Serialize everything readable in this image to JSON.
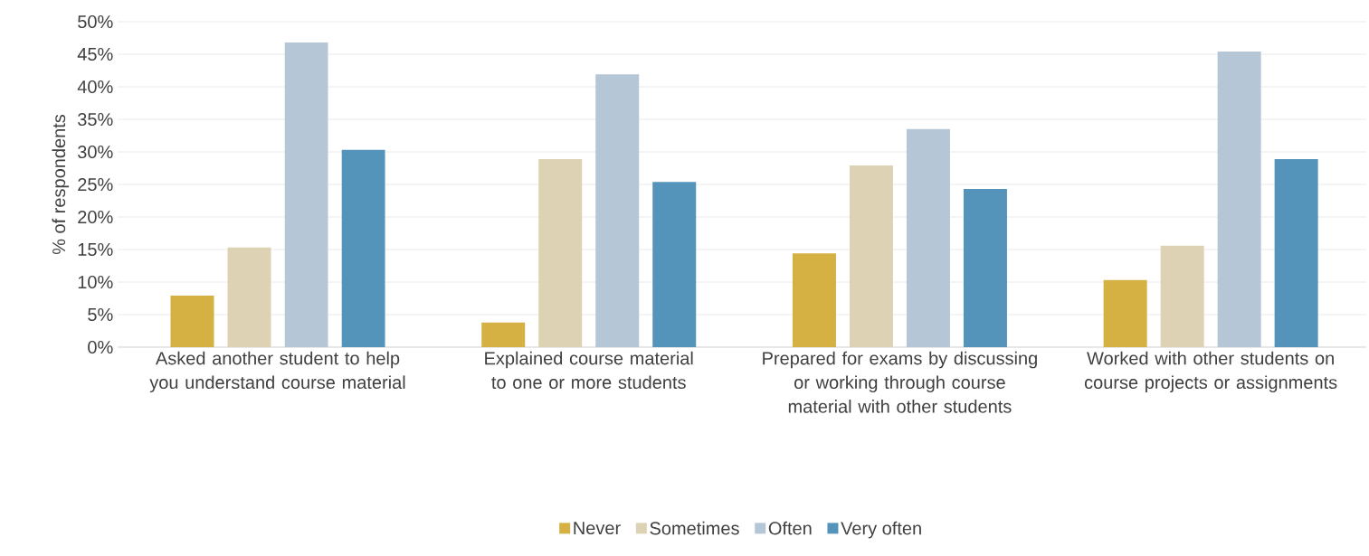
{
  "chart_data": {
    "type": "bar",
    "ylabel": "% of respondents",
    "categories": [
      "Asked another student to help you understand course material",
      "Explained course material to one or more students",
      "Prepared for exams by discussing or working through course material with other students",
      "Worked with other students on course projects or assignments"
    ],
    "series": [
      {
        "name": "Never",
        "color": "#d4b142",
        "values": [
          7.9,
          3.8,
          14.4,
          10.3
        ]
      },
      {
        "name": "Sometimes",
        "color": "#ddd3b4",
        "values": [
          15.3,
          28.9,
          27.9,
          15.6
        ]
      },
      {
        "name": "Often",
        "color": "#b5c6d6",
        "values": [
          46.8,
          41.9,
          33.5,
          45.4
        ]
      },
      {
        "name": "Very often",
        "color": "#5494bb",
        "values": [
          30.3,
          25.4,
          24.3,
          28.9
        ]
      }
    ],
    "ylim": [
      0,
      50
    ],
    "yticks": [
      {
        "value": 0,
        "label": "0%"
      },
      {
        "value": 5,
        "label": "5%"
      },
      {
        "value": 10,
        "label": "10%"
      },
      {
        "value": 15,
        "label": "15%"
      },
      {
        "value": 20,
        "label": "20%"
      },
      {
        "value": 25,
        "label": "25%"
      },
      {
        "value": 30,
        "label": "30%"
      },
      {
        "value": 35,
        "label": "35%"
      },
      {
        "value": 40,
        "label": "40%"
      },
      {
        "value": 45,
        "label": "45%"
      },
      {
        "value": 50,
        "label": "50%"
      }
    ],
    "grid": "y",
    "legend": "bottom"
  }
}
